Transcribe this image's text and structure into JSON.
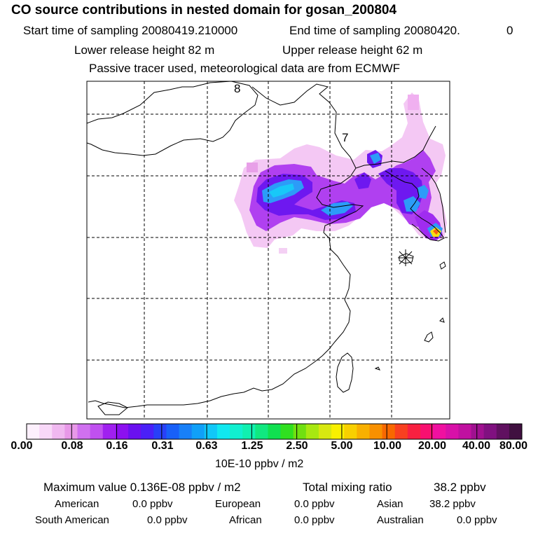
{
  "header": {
    "title": "CO  source contributions in nested domain for gosan_200804",
    "start_label": "Start time of sampling 20080419.210000",
    "end_label": "End time of sampling 20080420.",
    "end_suffix": "0",
    "lower_label": "Lower release height   82 m",
    "upper_label": "Upper release height   62 m",
    "tracer_note": "Passive tracer used, meteorological data are from ECMWF"
  },
  "map": {
    "grid_labels": [
      "8",
      "7"
    ],
    "release_marker": "asterisk-marker"
  },
  "colorbar": {
    "colors": [
      "#fdf0fd",
      "#f8d8f8",
      "#f0b8f0",
      "#e898e8",
      "#d070f0",
      "#c050f0",
      "#a020f0",
      "#8c10f0",
      "#6a10f0",
      "#4a20f8",
      "#2840f8",
      "#1860f8",
      "#1880f8",
      "#10a0f8",
      "#10c8f8",
      "#10e8f0",
      "#10f0d0",
      "#10f0b0",
      "#10e880",
      "#10e050",
      "#30e020",
      "#70e010",
      "#a8e810",
      "#d8e810",
      "#f8f000",
      "#f8d000",
      "#f8b000",
      "#f89000",
      "#f86800",
      "#f84020",
      "#f82040",
      "#f81070",
      "#f010a0",
      "#d810a8",
      "#c010a0",
      "#a01090",
      "#801080",
      "#601060",
      "#401040"
    ],
    "ticks": [
      "0.00",
      "0.08",
      "0.16",
      "0.31",
      "0.63",
      "1.25",
      "2.50",
      "5.00",
      "10.00",
      "20.00",
      "40.00",
      "80.00"
    ],
    "unit": "10E-10 ppbv / m2"
  },
  "footer": {
    "max_label": "Maximum value  0.136E-08 ppbv / m2",
    "total_label": "Total mixing ratio",
    "total_value": "38.2 ppbv",
    "regions": [
      {
        "name": "American",
        "value": "0.0 ppbv"
      },
      {
        "name": "European",
        "value": "0.0 ppbv"
      },
      {
        "name": "Asian",
        "value": "38.2 ppbv"
      },
      {
        "name": "South American",
        "value": "0.0 ppbv"
      },
      {
        "name": "African",
        "value": "0.0 ppbv"
      },
      {
        "name": "Australian",
        "value": "0.0 ppbv"
      }
    ]
  }
}
